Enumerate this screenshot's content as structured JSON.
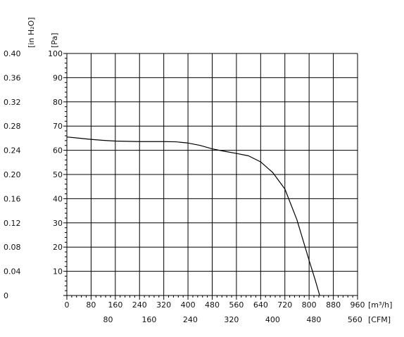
{
  "chart_data": {
    "type": "line",
    "title": "",
    "y_units": {
      "in_h2o": "[in H₂O]",
      "pa": "[Pa]"
    },
    "x_units": {
      "m3h": "[m³/h]",
      "cfm": "[CFM]"
    },
    "x_ticks_m3h": [
      "0",
      "80",
      "160",
      "240",
      "320",
      "400",
      "480",
      "560",
      "640",
      "720",
      "800",
      "880",
      "960"
    ],
    "x_ticks_cfm": [
      "80",
      "160",
      "240",
      "320",
      "400",
      "480",
      "560"
    ],
    "y_ticks_in_h2o": [
      "0",
      "0.04",
      "0.08",
      "0.12",
      "0.16",
      "0.20",
      "0.24",
      "0.28",
      "0.32",
      "0.36",
      "0.40"
    ],
    "y_ticks_pa": [
      "",
      "10",
      "20",
      "30",
      "40",
      "50",
      "60",
      "70",
      "80",
      "90",
      "100"
    ],
    "xlim": [
      0,
      960
    ],
    "ylim": [
      0,
      100
    ],
    "grid": true,
    "series": [
      {
        "x": [
          0,
          40,
          80,
          120,
          160,
          200,
          240,
          280,
          320,
          360,
          400,
          440,
          480,
          520,
          560,
          600,
          640,
          680,
          720,
          760,
          800,
          820,
          835
        ],
        "y": [
          65.5,
          65.0,
          64.5,
          64.1,
          63.8,
          63.7,
          63.6,
          63.6,
          63.6,
          63.5,
          63.0,
          62.0,
          60.6,
          59.6,
          58.7,
          57.7,
          55.2,
          50.8,
          44.0,
          31.2,
          14.5,
          6.5,
          0
        ]
      }
    ]
  }
}
